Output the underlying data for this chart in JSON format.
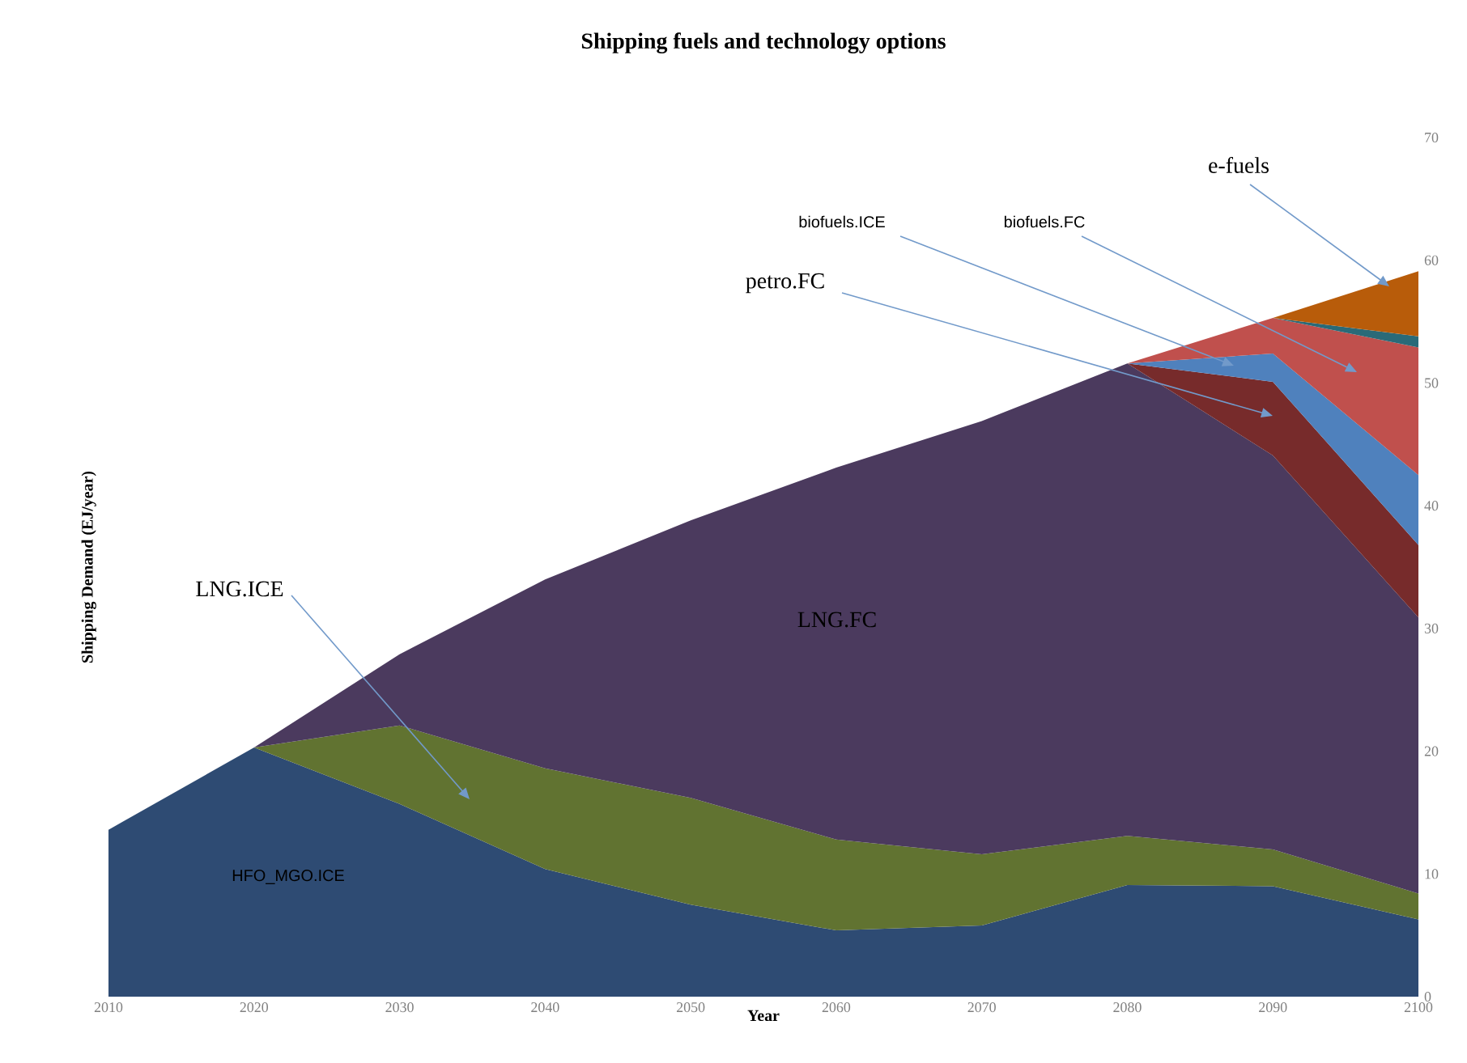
{
  "chart_data": {
    "type": "area",
    "title": "Shipping fuels and technology options",
    "xlabel": "Year",
    "ylabel": "Shipping Demand  (EJ/year)",
    "stacked": true,
    "x": [
      2010,
      2020,
      2030,
      2040,
      2050,
      2060,
      2070,
      2080,
      2090,
      2100
    ],
    "xlim": [
      2010,
      2100
    ],
    "xticks": [
      2010,
      2020,
      2030,
      2040,
      2050,
      2060,
      2070,
      2080,
      2090,
      2100
    ],
    "ylim": [
      0,
      70
    ],
    "yticks": [
      0,
      10,
      20,
      30,
      40,
      50,
      60,
      70
    ],
    "series": [
      {
        "name": "HFO_MGO.ICE",
        "color": "#2e4b73",
        "values": [
          13.6,
          20.3,
          15.7,
          10.4,
          7.5,
          5.4,
          5.8,
          9.1,
          9.0,
          6.3
        ]
      },
      {
        "name": "LNG.ICE",
        "color": "#617331",
        "values": [
          0,
          0,
          6.4,
          8.2,
          8.7,
          7.4,
          5.8,
          4.0,
          3.0,
          2.1
        ]
      },
      {
        "name": "LNG.FC",
        "color": "#4b3a5e",
        "values": [
          0,
          0,
          5.8,
          15.4,
          22.6,
          30.3,
          35.3,
          38.5,
          32.1,
          22.5
        ]
      },
      {
        "name": "petro.FC",
        "color": "#772b2b",
        "values": [
          null,
          null,
          null,
          null,
          null,
          null,
          null,
          0,
          6.0,
          5.9
        ]
      },
      {
        "name": "biofuels.ICE",
        "color": "#4f81bd",
        "values": [
          null,
          null,
          null,
          null,
          null,
          null,
          null,
          0,
          2.3,
          5.7
        ]
      },
      {
        "name": "biofuels.FC",
        "color": "#c0504d",
        "values": [
          null,
          null,
          null,
          null,
          null,
          null,
          null,
          0,
          2.9,
          10.4
        ]
      },
      {
        "color": "#2a6a78",
        "values": [
          null,
          null,
          null,
          null,
          null,
          null,
          null,
          null,
          0,
          0.9
        ]
      },
      {
        "name": "e-fuels",
        "color": "#b85c0a",
        "values": [
          null,
          null,
          null,
          null,
          null,
          null,
          null,
          null,
          0,
          5.3
        ]
      }
    ]
  }
}
